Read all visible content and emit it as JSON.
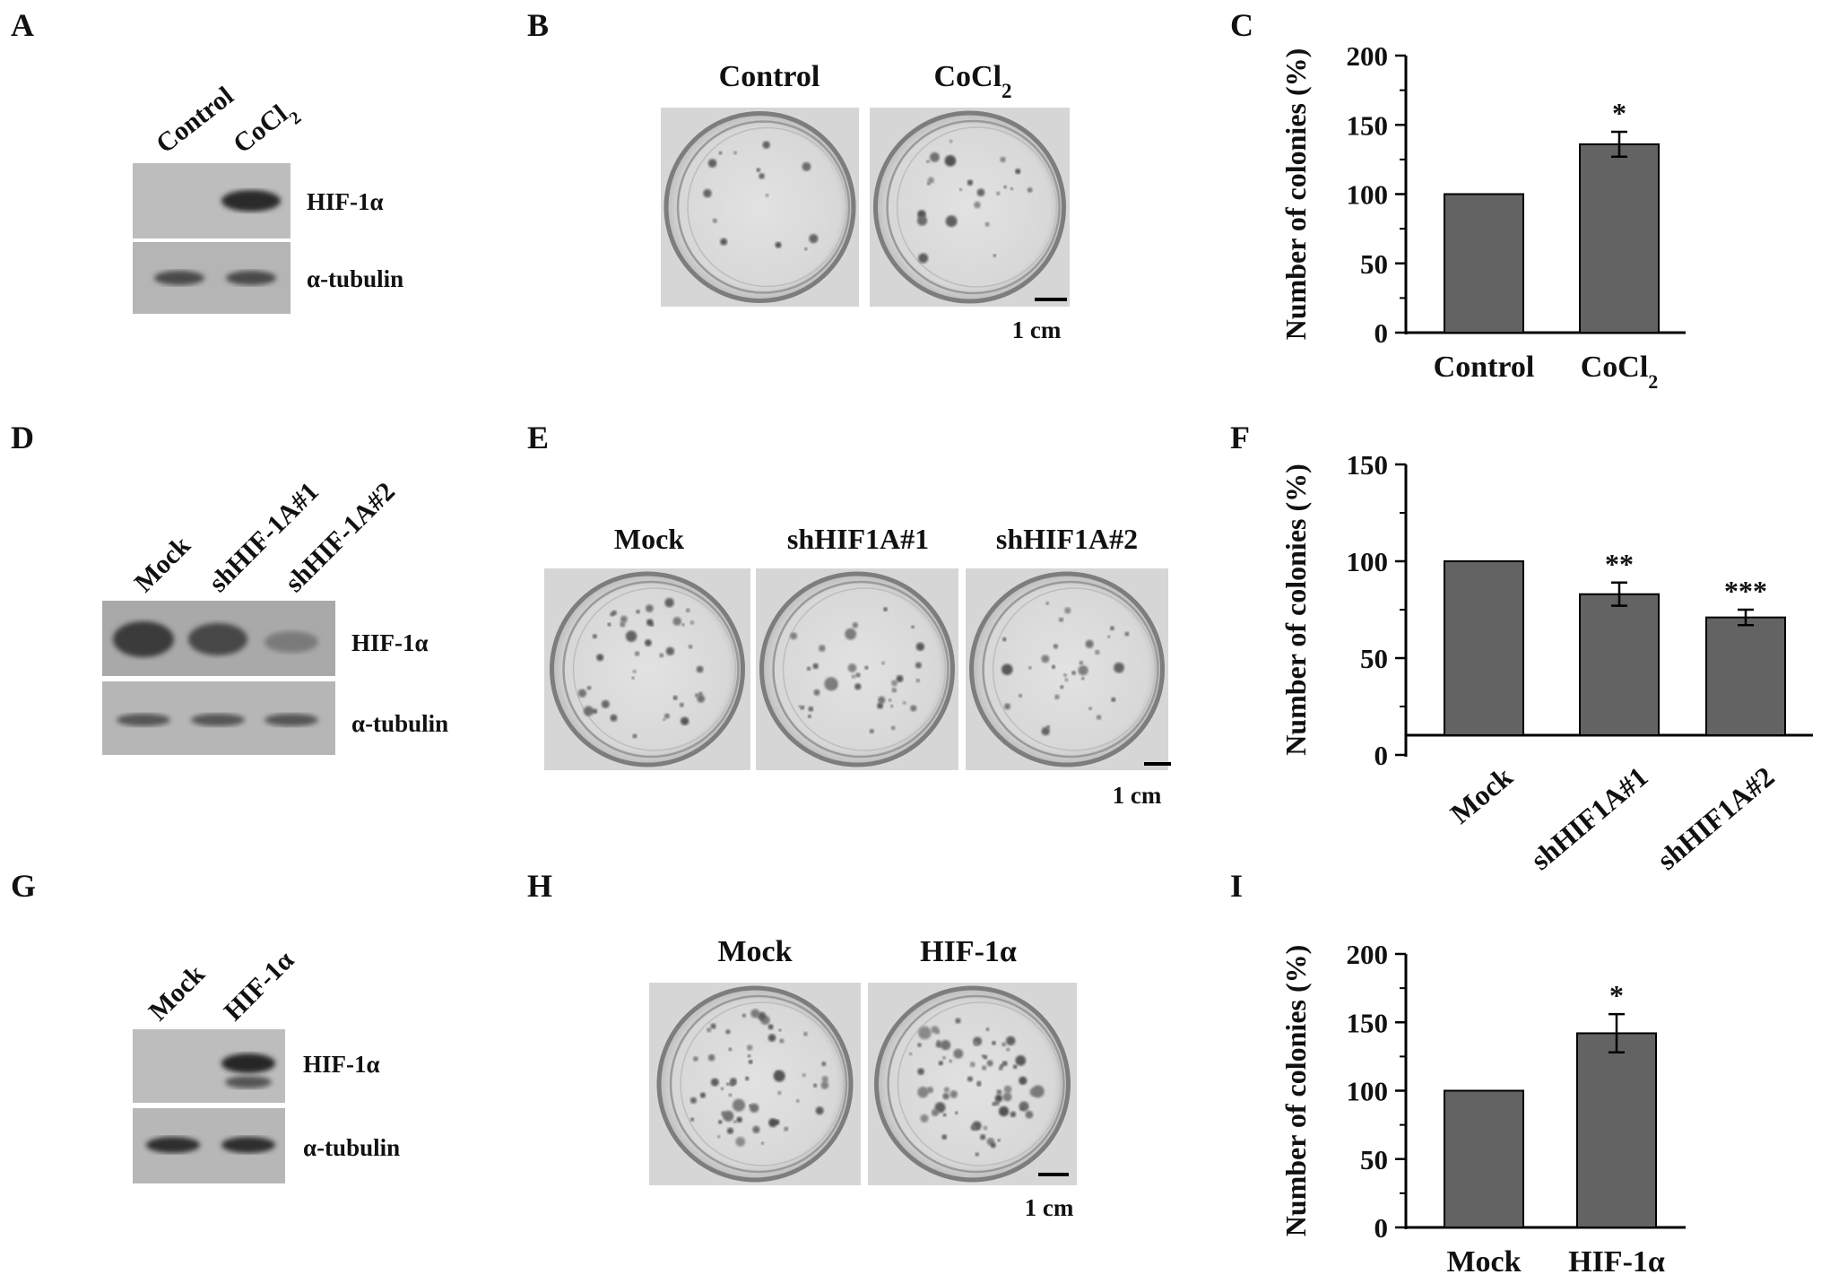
{
  "panels": {
    "A": {
      "letter": "A",
      "lanes": [
        "Control",
        "CoCl2"
      ],
      "bands": [
        "HIF-1α",
        "α-tubulin"
      ]
    },
    "B": {
      "letter": "B",
      "lanes": [
        "Control",
        "CoCl2"
      ],
      "scale": "1 cm"
    },
    "D": {
      "letter": "D",
      "lanes": [
        "Mock",
        "shHIF-1A#1",
        "shHIF-1A#2"
      ],
      "bands": [
        "HIF-1α",
        "α-tubulin"
      ]
    },
    "E": {
      "letter": "E",
      "lanes": [
        "Mock",
        "shHIF1A#1",
        "shHIF1A#2"
      ],
      "scale": "1 cm"
    },
    "G": {
      "letter": "G",
      "lanes": [
        "Mock",
        "HIF-1α"
      ],
      "bands": [
        "HIF-1α",
        "α-tubulin"
      ]
    },
    "H": {
      "letter": "H",
      "lanes": [
        "Mock",
        "HIF-1α"
      ],
      "scale": "1 cm"
    }
  },
  "chart_data": [
    {
      "panel": "C",
      "type": "bar",
      "ylabel": "Number of colonies (%)",
      "categories": [
        "Control",
        "CoCl2"
      ],
      "values": [
        100,
        136
      ],
      "errors": [
        0,
        9
      ],
      "significance": [
        "",
        "*"
      ],
      "ylim": [
        0,
        200
      ],
      "yticks": [
        0,
        50,
        100,
        150,
        200
      ],
      "bar_color": "#636363",
      "grid": false
    },
    {
      "panel": "F",
      "type": "bar",
      "ylabel": "Number of colonies (%)",
      "categories": [
        "Mock",
        "shHIF1A#1",
        "shHIF1A#2"
      ],
      "values": [
        100,
        83,
        71
      ],
      "errors": [
        0,
        6,
        4
      ],
      "significance": [
        "",
        "**",
        "***"
      ],
      "ylim": [
        0,
        150
      ],
      "yticks": [
        0,
        50,
        100,
        150
      ],
      "bar_color": "#636363",
      "grid": false
    },
    {
      "panel": "I",
      "type": "bar",
      "ylabel": "Number of colonies (%)",
      "categories": [
        "Mock",
        "HIF-1α"
      ],
      "values": [
        100,
        142
      ],
      "errors": [
        0,
        14
      ],
      "significance": [
        "",
        "*"
      ],
      "ylim": [
        0,
        200
      ],
      "yticks": [
        0,
        50,
        100,
        150,
        200
      ],
      "bar_color": "#636363",
      "grid": false
    }
  ]
}
